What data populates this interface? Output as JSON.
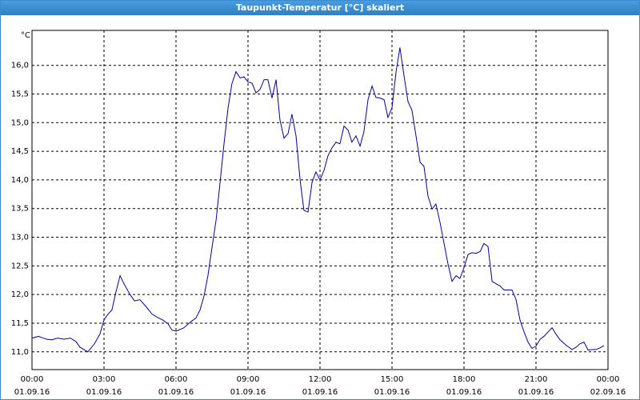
{
  "chart_data": {
    "type": "line",
    "title": "Taupunkt-Temperatur [°C] skaliert",
    "y_label": "°C",
    "xlim": [
      0,
      24
    ],
    "ylim": [
      10.69,
      16.61
    ],
    "xticks": [
      {
        "value": 0,
        "label": "00:00"
      },
      {
        "value": 3,
        "label": "03:00"
      },
      {
        "value": 6,
        "label": "06:00"
      },
      {
        "value": 9,
        "label": "09:00"
      },
      {
        "value": 12,
        "label": "12:00"
      },
      {
        "value": 15,
        "label": "15:00"
      },
      {
        "value": 18,
        "label": "18:00"
      },
      {
        "value": 21,
        "label": "21:00"
      },
      {
        "value": 24,
        "label": "00:00"
      }
    ],
    "xtick_sublabels": [
      "01.09.16",
      "01.09.16",
      "01.09.16",
      "01.09.16",
      "01.09.16",
      "01.09.16",
      "01.09.16",
      "01.09.16",
      "02.09.16"
    ],
    "yticks": [
      {
        "value": 11,
        "label": "11,0"
      },
      {
        "value": 11.5,
        "label": "11,5"
      },
      {
        "value": 12,
        "label": "12,0"
      },
      {
        "value": 12.5,
        "label": "12,5"
      },
      {
        "value": 13,
        "label": "13,0"
      },
      {
        "value": 13.5,
        "label": "13,5"
      },
      {
        "value": 14,
        "label": "14,0"
      },
      {
        "value": 14.5,
        "label": "14,5"
      },
      {
        "value": 15,
        "label": "15,0"
      },
      {
        "value": 15.5,
        "label": "15,5"
      },
      {
        "value": 16,
        "label": "16,0"
      }
    ],
    "grid": true,
    "series": [
      {
        "color": "#0000a8",
        "x": [
          0,
          0.27,
          0.6,
          0.83,
          1.07,
          1.33,
          1.6,
          1.83,
          2,
          2.33,
          2.6,
          2.83,
          3,
          3.17,
          3.33,
          3.5,
          3.67,
          3.83,
          4.07,
          4.27,
          4.5,
          4.73,
          5,
          5.23,
          5.43,
          5.67,
          5.83,
          6,
          6.33,
          6.6,
          6.83,
          7,
          7.17,
          7.33,
          7.5,
          7.67,
          7.83,
          8,
          8.17,
          8.33,
          8.5,
          8.67,
          8.83,
          9,
          9.17,
          9.33,
          9.5,
          9.67,
          9.83,
          10,
          10.17,
          10.33,
          10.5,
          10.67,
          10.83,
          11,
          11.17,
          11.33,
          11.5,
          11.67,
          11.83,
          12,
          12.17,
          12.33,
          12.5,
          12.67,
          12.83,
          13,
          13.17,
          13.33,
          13.5,
          13.67,
          13.83,
          14,
          14.17,
          14.33,
          14.5,
          14.67,
          14.83,
          15,
          15.17,
          15.33,
          15.5,
          15.67,
          15.83,
          16,
          16.17,
          16.33,
          16.5,
          16.67,
          16.83,
          17,
          17.17,
          17.33,
          17.5,
          17.67,
          17.83,
          18,
          18.17,
          18.33,
          18.5,
          18.67,
          18.83,
          19,
          19.17,
          19.33,
          19.5,
          19.67,
          19.83,
          20,
          20.17,
          20.33,
          20.5,
          20.67,
          20.83,
          21,
          21.17,
          21.33,
          21.67,
          21.83,
          22,
          22.27,
          22.5,
          22.67,
          22.83,
          23,
          23.17,
          23.33,
          23.5,
          23.67,
          23.83
        ],
        "values": [
          11.24,
          11.27,
          11.22,
          11.21,
          11.24,
          11.22,
          11.24,
          11.18,
          11.08,
          11.0,
          11.14,
          11.31,
          11.56,
          11.66,
          11.73,
          12.05,
          12.33,
          12.19,
          12.01,
          11.89,
          11.91,
          11.8,
          11.66,
          11.6,
          11.56,
          11.49,
          11.38,
          11.36,
          11.42,
          11.52,
          11.59,
          11.73,
          11.98,
          12.33,
          12.82,
          13.3,
          13.93,
          14.63,
          15.26,
          15.68,
          15.89,
          15.78,
          15.8,
          15.71,
          15.69,
          15.52,
          15.58,
          15.75,
          15.75,
          15.43,
          15.75,
          15.05,
          14.73,
          14.81,
          15.15,
          14.77,
          14.0,
          13.47,
          13.44,
          13.96,
          14.14,
          14.0,
          14.17,
          14.42,
          14.56,
          14.66,
          14.63,
          14.94,
          14.87,
          14.66,
          14.77,
          14.59,
          14.84,
          15.4,
          15.64,
          15.44,
          15.43,
          15.4,
          15.09,
          15.26,
          15.89,
          16.31,
          15.82,
          15.36,
          15.22,
          14.77,
          14.31,
          14.24,
          13.72,
          13.49,
          13.58,
          13.26,
          12.89,
          12.54,
          12.23,
          12.33,
          12.28,
          12.47,
          12.7,
          12.73,
          12.72,
          12.75,
          12.89,
          12.84,
          12.23,
          12.19,
          12.15,
          12.08,
          12.08,
          12.08,
          11.91,
          11.56,
          11.35,
          11.17,
          11.06,
          11.1,
          11.22,
          11.27,
          11.42,
          11.31,
          11.21,
          11.11,
          11.04,
          11.08,
          11.14,
          11.17,
          11.03,
          11.04,
          11.04,
          11.07,
          11.11
        ]
      }
    ]
  }
}
